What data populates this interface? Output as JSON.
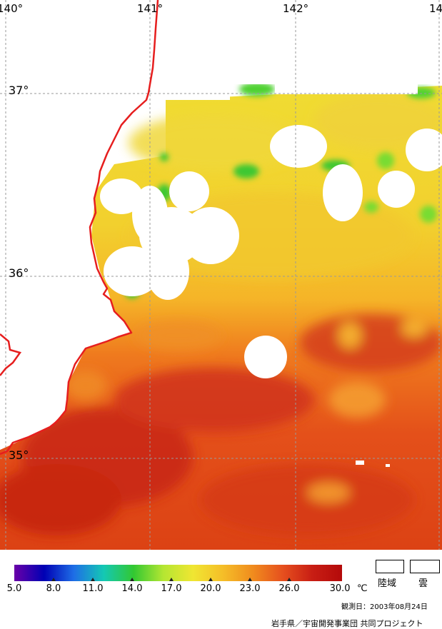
{
  "map": {
    "longitude_labels": [
      "140°",
      "141°",
      "142°",
      "14"
    ],
    "latitude_labels": [
      "37°",
      "36°",
      "35°"
    ],
    "colors": {
      "coastline": "#e61e1e",
      "graticule": "#9a9a9a",
      "land": "#ffffff",
      "cloud": "#ffffff"
    }
  },
  "legend": {
    "colorbar_stops": [
      "#6a00a8",
      "#0000b4",
      "#1e6ee6",
      "#14c8b4",
      "#32c832",
      "#b4e632",
      "#f0e632",
      "#f5be28",
      "#f08c1e",
      "#e6501e",
      "#c81e14",
      "#b40a0a"
    ],
    "tick_labels": [
      "5.0",
      "8.0",
      "11.0",
      "14.0",
      "17.0",
      "20.0",
      "23.0",
      "26.0",
      "30.0"
    ],
    "unit": "℃",
    "swatches": [
      {
        "label": "陸域"
      },
      {
        "label": "雲"
      }
    ]
  },
  "observation_date": "観測日：2003年08月24日",
  "credit": "岩手県／宇宙開発事業団 共同プロジェクト"
}
